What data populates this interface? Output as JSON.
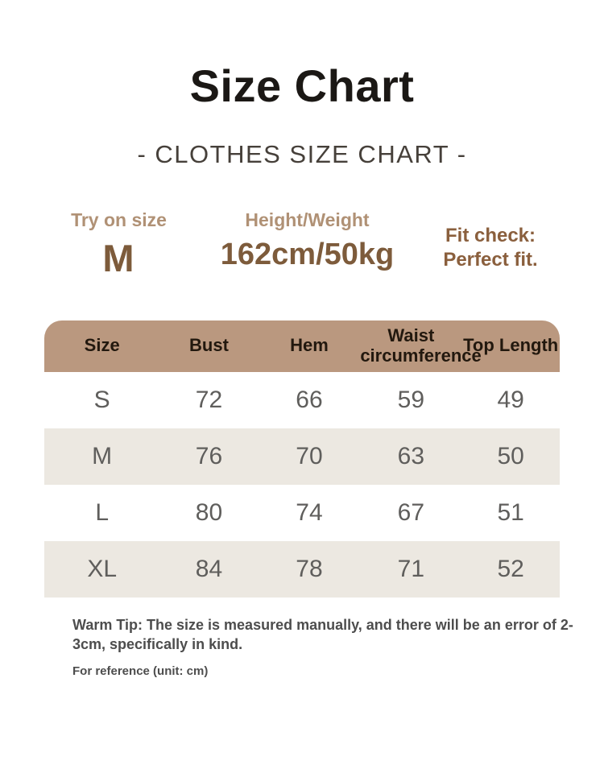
{
  "title": "Size Chart",
  "subtitle": "- CLOTHES SIZE CHART -",
  "info": {
    "try_on": {
      "label": "Try on size",
      "value": "M"
    },
    "height_weight": {
      "label": "Height/Weight",
      "value": "162cm/50kg"
    },
    "fit_check": {
      "line1": "Fit check:",
      "line2": "Perfect fit."
    }
  },
  "table": {
    "headers": [
      "Size",
      "Bust",
      "Hem",
      "Waist circumference",
      "Top Length"
    ],
    "rows": [
      [
        "S",
        "72",
        "66",
        "59",
        "49"
      ],
      [
        "M",
        "76",
        "70",
        "63",
        "50"
      ],
      [
        "L",
        "80",
        "74",
        "67",
        "51"
      ],
      [
        "XL",
        "84",
        "78",
        "71",
        "52"
      ]
    ]
  },
  "footer": {
    "warm_tip": "Warm Tip: The size is measured manually, and there will be an error of 2-3cm, specifically in kind.",
    "reference": "For reference (unit: cm)"
  },
  "colors": {
    "header_bg": "#ba987f",
    "row_alt_bg": "#ece8e1",
    "row_bg": "#ffffff",
    "label_tan": "#b09175",
    "value_brown": "#7d5b3b",
    "fit_brown": "#8a5f3d",
    "header_text": "#22180e",
    "cell_text": "#5f5e5c",
    "title_text": "#1b1815",
    "subtitle_text": "#46403a",
    "tip_text": "#4d4d4d"
  },
  "chart_data": {
    "type": "table",
    "title": "Size Chart",
    "subtitle": "CLOTHES SIZE CHART",
    "unit": "cm",
    "columns": [
      "Size",
      "Bust",
      "Hem",
      "Waist circumference",
      "Top Length"
    ],
    "rows": [
      [
        "S",
        72,
        66,
        59,
        49
      ],
      [
        "M",
        76,
        70,
        63,
        50
      ],
      [
        "L",
        80,
        74,
        67,
        51
      ],
      [
        "XL",
        84,
        78,
        71,
        52
      ]
    ],
    "model_info": {
      "try_on_size": "M",
      "height_weight": "162cm/50kg",
      "fit_check": "Perfect fit."
    },
    "note": "Warm Tip: The size is measured manually, and there will be an error of 2-3cm, specifically in kind.",
    "tolerance_cm": "2-3"
  }
}
